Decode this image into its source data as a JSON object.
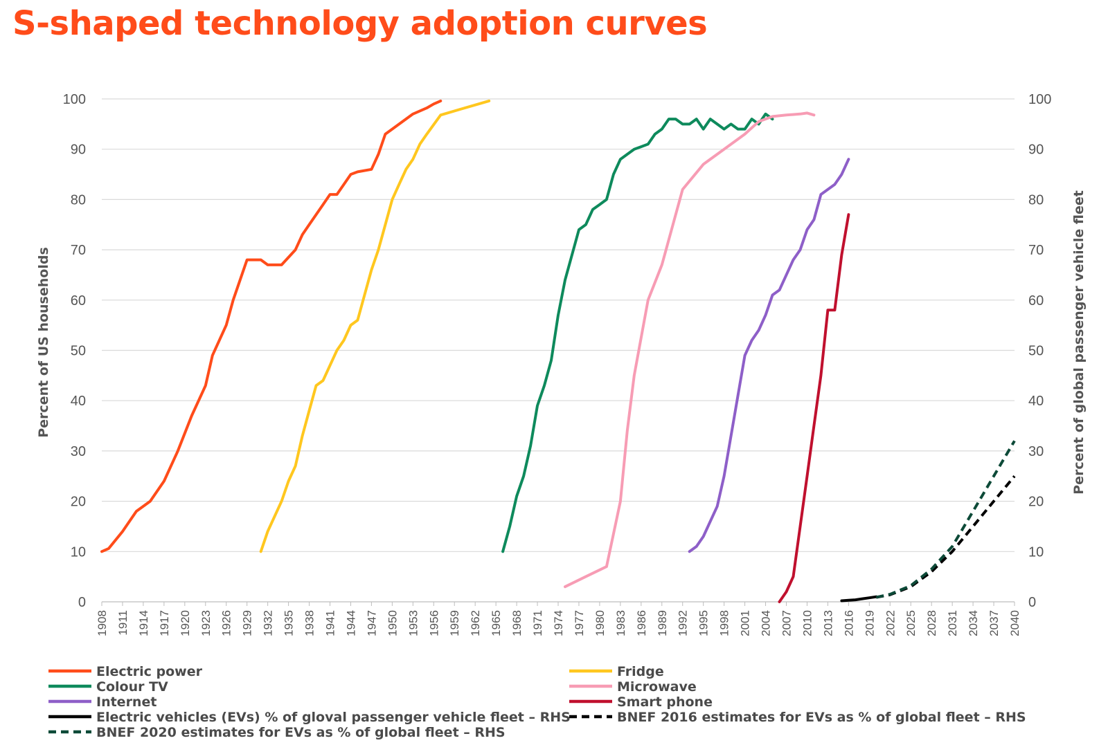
{
  "title": "S-shaped technology adoption curves",
  "chart_data": {
    "type": "line",
    "title": "S-shaped technology adoption curves",
    "ylabel_left": "Percent of US households",
    "ylabel_right": "Percent of global passenger vehicle fleet",
    "xlim": [
      1908,
      2040
    ],
    "ylim": [
      0,
      100
    ],
    "yticks": [
      0,
      10,
      20,
      30,
      40,
      50,
      60,
      70,
      80,
      90,
      100
    ],
    "xticks": [
      1908,
      1911,
      1914,
      1917,
      1920,
      1923,
      1926,
      1929,
      1932,
      1935,
      1938,
      1941,
      1944,
      1947,
      1950,
      1953,
      1956,
      1959,
      1962,
      1965,
      1968,
      1971,
      1974,
      1977,
      1980,
      1983,
      1986,
      1989,
      1992,
      1995,
      1998,
      2001,
      2004,
      2007,
      2010,
      2013,
      2016,
      2019,
      2022,
      2025,
      2028,
      2031,
      2034,
      2037,
      2040
    ],
    "grid": true,
    "legend_position": "bottom",
    "series": [
      {
        "name": "Electric power",
        "color": "#ff4c1a",
        "dash": false,
        "x": [
          1908,
          1909,
          1911,
          1913,
          1915,
          1917,
          1919,
          1921,
          1923,
          1924,
          1926,
          1927,
          1929,
          1930,
          1931,
          1932,
          1934,
          1936,
          1937,
          1938,
          1939,
          1940,
          1941,
          1942,
          1943,
          1944,
          1945,
          1947,
          1948,
          1949,
          1950,
          1951,
          1953,
          1955,
          1956,
          1957
        ],
        "y": [
          10,
          10.6,
          14,
          18,
          20,
          24,
          30,
          37,
          43,
          49,
          55,
          60,
          68,
          68,
          68,
          67,
          67,
          70,
          73,
          75,
          77,
          79,
          81,
          81,
          83,
          85,
          85.5,
          86,
          89,
          93,
          94,
          95,
          97,
          98.2,
          99,
          99.6
        ]
      },
      {
        "name": "Fridge",
        "color": "#ffc71f",
        "dash": false,
        "x": [
          1931,
          1932,
          1934,
          1935,
          1936,
          1937,
          1938,
          1939,
          1940,
          1942,
          1943,
          1944,
          1945,
          1946,
          1947,
          1948,
          1949,
          1950,
          1951,
          1952,
          1953,
          1954,
          1955,
          1957,
          1960,
          1964
        ],
        "y": [
          10,
          14,
          20,
          24,
          27,
          33,
          38,
          43,
          44,
          50,
          52,
          55,
          56,
          61,
          66,
          70,
          75,
          80,
          83,
          86,
          88,
          91,
          93,
          96.8,
          98,
          99.6
        ]
      },
      {
        "name": "Colour TV",
        "color": "#0e8a5c",
        "dash": false,
        "x": [
          1966,
          1967,
          1968,
          1969,
          1970,
          1971,
          1972,
          1973,
          1974,
          1975,
          1976,
          1977,
          1978,
          1979,
          1980,
          1981,
          1982,
          1983,
          1984,
          1985,
          1986,
          1987,
          1988,
          1989,
          1990,
          1991,
          1992,
          1993,
          1994,
          1995,
          1996,
          1997,
          1998,
          1999,
          2000,
          2001,
          2002,
          2003,
          2004,
          2005
        ],
        "y": [
          10,
          15,
          21,
          25,
          31,
          39,
          43,
          48,
          57,
          64,
          69,
          74,
          75,
          78,
          79,
          80,
          85,
          88,
          89,
          90,
          90.5,
          91,
          93,
          94,
          96,
          96,
          95,
          95,
          96,
          94,
          96,
          95,
          94,
          95,
          94,
          94,
          96,
          95,
          97,
          96
        ]
      },
      {
        "name": "Microwave",
        "color": "#f79cb4",
        "dash": false,
        "x": [
          1975,
          1978,
          1981,
          1983,
          1984,
          1985,
          1987,
          1989,
          1992,
          1995,
          1998,
          2001,
          2003,
          2005,
          2007,
          2009,
          2010,
          2011
        ],
        "y": [
          3,
          5,
          7,
          20,
          34,
          45,
          60,
          67,
          82,
          87,
          90,
          93,
          95.5,
          96.5,
          96.8,
          97,
          97.2,
          96.8
        ]
      },
      {
        "name": "Internet",
        "color": "#8e5fc8",
        "dash": false,
        "x": [
          1993,
          1994,
          1995,
          1996,
          1997,
          1998,
          1999,
          2000,
          2001,
          2002,
          2003,
          2004,
          2005,
          2006,
          2007,
          2008,
          2009,
          2010,
          2011,
          2012,
          2013,
          2014,
          2015,
          2016
        ],
        "y": [
          10,
          11,
          13,
          16,
          19,
          25,
          33,
          41,
          49,
          52,
          54,
          57,
          61,
          62,
          65,
          68,
          70,
          74,
          76,
          81,
          82,
          83,
          85,
          88
        ]
      },
      {
        "name": "Smart phone",
        "color": "#c0102e",
        "dash": false,
        "x": [
          2006,
          2007,
          2008,
          2009,
          2010,
          2011,
          2012,
          2013,
          2014,
          2015,
          2016
        ],
        "y": [
          0,
          2,
          5,
          15,
          25,
          35,
          45,
          58,
          58,
          69,
          77
        ]
      },
      {
        "name": "Electric vehicles (EVs) % of gloval passenger vehicle fleet – RHS",
        "color": "#000000",
        "dash": false,
        "x": [
          2015,
          2016,
          2017,
          2018,
          2019,
          2020
        ],
        "y": [
          0.2,
          0.3,
          0.4,
          0.6,
          0.8,
          1.0
        ]
      },
      {
        "name": "BNEF 2016 estimates for EVs as % of global fleet – RHS",
        "color": "#000000",
        "dash": true,
        "x": [
          2020,
          2022,
          2025,
          2028,
          2031,
          2034,
          2037,
          2040
        ],
        "y": [
          0.9,
          1.4,
          3,
          6,
          10,
          15,
          20,
          25
        ]
      },
      {
        "name": "BNEF 2020 estimates for EVs as % of global fleet – RHS",
        "color": "#0d4a38",
        "dash": true,
        "x": [
          2020,
          2022,
          2025,
          2028,
          2031,
          2034,
          2037,
          2040
        ],
        "y": [
          0.9,
          1.5,
          3.2,
          6.5,
          11,
          18,
          25,
          32
        ]
      }
    ]
  }
}
